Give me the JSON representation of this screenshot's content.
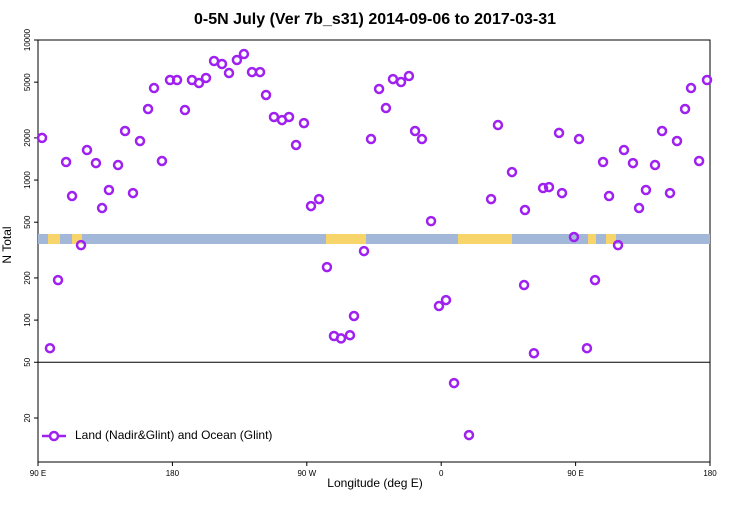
{
  "chart_data": {
    "type": "scatter",
    "title": "0-5N July (Ver 7b_s31)   2014-09-06 to 2017-03-31",
    "x_label": "Longitude (deg E)",
    "y_label": "N Total",
    "log_y": true,
    "legend": "bottom-left",
    "reference_line": 50,
    "xlim": [
      90,
      540
    ],
    "xticks": [
      {
        "value": 90,
        "label": "90 E"
      },
      180,
      {
        "value": 270,
        "label": "90 W"
      },
      {
        "value": 360,
        "label": "0"
      },
      {
        "value": 450,
        "label": "90 E"
      },
      {
        "value": 540,
        "label": "180"
      }
    ],
    "ylim": [
      9.7,
      10000
    ],
    "yticks": [
      20,
      50,
      100,
      200,
      500,
      1000,
      2000,
      5000,
      10000
    ],
    "series": [
      {
        "name": "Land (Nadir&Glint) and Ocean (Glint)",
        "color": "#a020f0",
        "x": [
          92.7,
          98.0,
          103.4,
          108.8,
          112.8,
          118.8,
          122.8,
          128.8,
          132.9,
          137.5,
          143.6,
          148.3,
          153.6,
          158.3,
          163.7,
          167.7,
          173.0,
          178.4,
          183.1,
          188.4,
          193.1,
          197.8,
          202.5,
          207.9,
          213.2,
          217.9,
          223.2,
          227.9,
          233.3,
          238.7,
          242.7,
          248.0,
          253.4,
          258.1,
          262.8,
          268.1,
          272.8,
          278.2,
          283.5,
          288.2,
          292.9,
          298.9,
          301.6,
          308.3,
          313.0,
          318.4,
          323.0,
          327.7,
          333.1,
          338.4,
          342.5,
          347.1,
          353.2,
          358.5,
          363.2,
          368.6,
          378.6,
          393.4,
          398.0,
          407.4,
          416.1,
          415.5,
          422.1,
          428.2,
          432.2,
          438.9,
          440.9,
          448.9,
          452.3,
          457.6,
          463.0,
          468.4,
          472.4,
          478.4,
          482.4,
          488.4,
          492.5,
          497.1,
          503.2,
          507.9,
          513.2,
          517.9,
          523.3,
          527.3,
          532.7,
          538.0
        ],
        "values": [
          2000,
          63,
          193,
          1345,
          769,
          343,
          1638,
          1322,
          631,
          849,
          1280,
          2239,
          807,
          1900,
          3215,
          4540,
          1368,
          5180,
          5180,
          3162,
          5180,
          4930,
          5357,
          7080,
          6740,
          5810,
          7200,
          7940,
          5900,
          5900,
          4050,
          2820,
          2680,
          2820,
          1780,
          2550,
          652,
          731,
          239,
          77,
          74,
          78,
          107,
          311,
          1963,
          4470,
          3266,
          5260,
          5010,
          5530,
          2239,
          1963,
          509,
          126,
          139,
          35.5,
          15.1,
          731,
          2470,
          1140,
          611,
          178,
          58,
          877,
          891,
          2170,
          807,
          392,
          1963,
          63,
          193,
          1345,
          769,
          343,
          1638,
          1322,
          631,
          849,
          1280,
          2239,
          807,
          1900,
          3215,
          4540,
          1368,
          5180
        ]
      }
    ]
  }
}
